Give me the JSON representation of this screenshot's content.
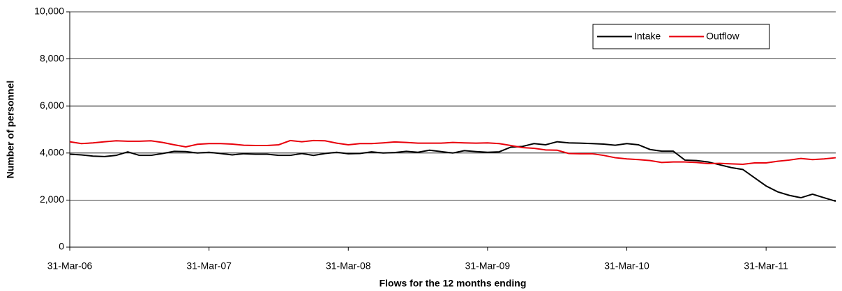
{
  "chart_data": {
    "type": "line",
    "categories": [
      "31-Mar-06",
      null,
      null,
      null,
      null,
      null,
      null,
      null,
      null,
      null,
      null,
      null,
      "31-Mar-07",
      null,
      null,
      null,
      null,
      null,
      null,
      null,
      null,
      null,
      null,
      null,
      "31-Mar-08",
      null,
      null,
      null,
      null,
      null,
      null,
      null,
      null,
      null,
      null,
      null,
      "31-Mar-09",
      null,
      null,
      null,
      null,
      null,
      null,
      null,
      null,
      null,
      null,
      null,
      "31-Mar-10",
      null,
      null,
      null,
      null,
      null,
      null,
      null,
      null,
      null,
      null,
      null,
      "31-Mar-11",
      null,
      null,
      null,
      null,
      null,
      null
    ],
    "series": [
      {
        "name": "Intake",
        "color": "#000000",
        "values": [
          3950,
          3920,
          3870,
          3850,
          3900,
          4050,
          3900,
          3900,
          3980,
          4070,
          4060,
          4000,
          4030,
          3980,
          3920,
          3970,
          3950,
          3950,
          3900,
          3900,
          3980,
          3900,
          3980,
          4030,
          3970,
          3980,
          4050,
          4000,
          4020,
          4070,
          4030,
          4120,
          4060,
          4000,
          4100,
          4060,
          4030,
          4050,
          4250,
          4280,
          4400,
          4350,
          4480,
          4430,
          4420,
          4400,
          4380,
          4330,
          4400,
          4350,
          4150,
          4080,
          4080,
          3700,
          3680,
          3620,
          3500,
          3380,
          3300,
          2950,
          2600,
          2350,
          2200,
          2100,
          2250,
          2100,
          1950
        ]
      },
      {
        "name": "Outflow",
        "color": "#e8000b",
        "values": [
          4480,
          4400,
          4430,
          4480,
          4520,
          4500,
          4500,
          4520,
          4450,
          4350,
          4260,
          4370,
          4400,
          4400,
          4380,
          4330,
          4320,
          4320,
          4350,
          4530,
          4480,
          4530,
          4520,
          4420,
          4350,
          4400,
          4400,
          4430,
          4470,
          4450,
          4420,
          4420,
          4420,
          4450,
          4430,
          4420,
          4430,
          4400,
          4320,
          4230,
          4200,
          4130,
          4120,
          3980,
          3970,
          3970,
          3900,
          3800,
          3750,
          3720,
          3680,
          3600,
          3620,
          3620,
          3600,
          3550,
          3560,
          3540,
          3520,
          3580,
          3580,
          3650,
          3700,
          3770,
          3720,
          3750,
          3800
        ]
      }
    ],
    "ylim": [
      0,
      10000
    ],
    "yticks": [
      0,
      {
        "value": 2000,
        "label": "2,000"
      },
      {
        "value": 4000,
        "label": "4,000"
      },
      {
        "value": 6000,
        "label": "6,000"
      },
      {
        "value": 8000,
        "label": "8,000"
      },
      {
        "value": 10000,
        "label": "10,000"
      }
    ],
    "grid": true,
    "x_label": "Flows for the 12 months ending",
    "y_label": "Number of personnel",
    "legend": "top-right"
  }
}
